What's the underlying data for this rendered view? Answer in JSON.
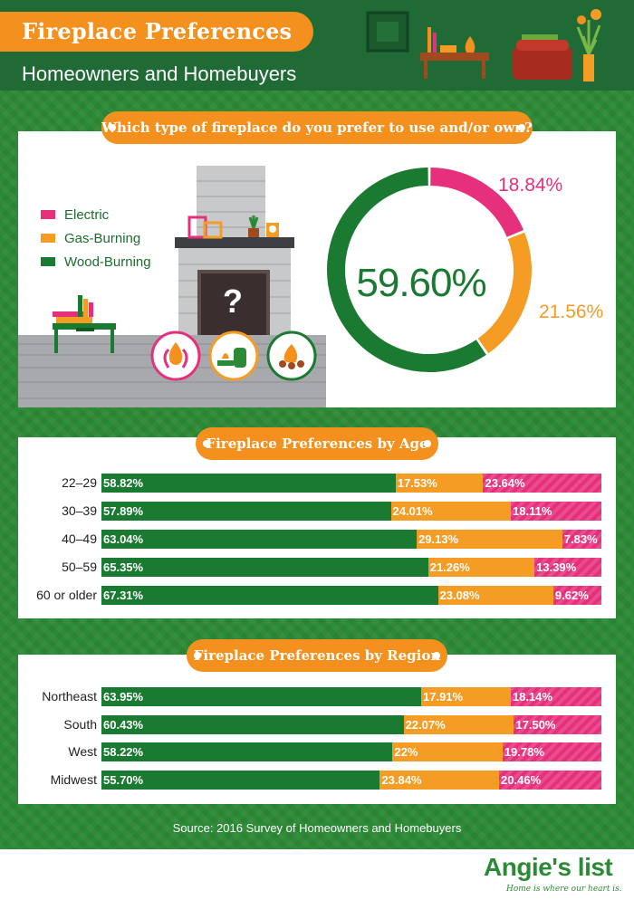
{
  "header": {
    "title": "Fireplace Preferences",
    "subtitle": "Homeowners and Homebuyers"
  },
  "colors": {
    "header_bg": "#1f6a35",
    "background_green": "#2c8a36",
    "accent_orange": "#f4901e",
    "wood": "#1a7a32",
    "gas": "#f59c24",
    "electric": "#e6307c"
  },
  "icons": [
    "electric-fire-icon",
    "gas-tank-flame-icon",
    "campfire-logs-icon",
    "fireplace-illustration",
    "question-mark-icon"
  ],
  "section_q": {
    "title": "Which type of fireplace do you prefer to use and/or own?",
    "question_mark": "?"
  },
  "section_age": {
    "title": "Fireplace Preferences by Age"
  },
  "section_region": {
    "title": "Fireplace Preferences by Region"
  },
  "source": "Source: 2016 Survey of Homeowners and Homebuyers",
  "brand": {
    "name": "Angie's list",
    "tagline": "Home is where our heart is."
  },
  "chart_data": [
    {
      "type": "pie",
      "title": "Which type of fireplace do you prefer to use and/or own?",
      "legend": [
        "Electric",
        "Gas-Burning",
        "Wood-Burning"
      ],
      "legend_position": "left",
      "categories": [
        "Electric",
        "Gas-Burning",
        "Wood-Burning"
      ],
      "values": [
        18.84,
        21.56,
        59.6
      ],
      "labels": [
        "18.84%",
        "21.56%",
        "59.60%"
      ]
    },
    {
      "type": "bar",
      "stacked": true,
      "orientation": "horizontal",
      "title": "Fireplace Preferences by Age",
      "categories": [
        "22–29",
        "30–39",
        "40–49",
        "50–59",
        "60 or older"
      ],
      "series": [
        {
          "name": "Wood-Burning",
          "values": [
            58.82,
            57.89,
            63.04,
            65.35,
            67.31
          ],
          "labels": [
            "58.82%",
            "57.89%",
            "63.04%",
            "65.35%",
            "67.31%"
          ]
        },
        {
          "name": "Gas-Burning",
          "values": [
            17.53,
            24.01,
            29.13,
            21.26,
            23.08
          ],
          "labels": [
            "17.53%",
            "24.01%",
            "29.13%",
            "21.26%",
            "23.08%"
          ]
        },
        {
          "name": "Electric",
          "values": [
            23.64,
            18.11,
            7.83,
            13.39,
            9.62
          ],
          "labels": [
            "23.64%",
            "18.11%",
            "7.83%",
            "13.39%",
            "9.62%"
          ]
        }
      ]
    },
    {
      "type": "bar",
      "stacked": true,
      "orientation": "horizontal",
      "title": "Fireplace Preferences by Region",
      "categories": [
        "Northeast",
        "South",
        "West",
        "Midwest"
      ],
      "series": [
        {
          "name": "Wood-Burning",
          "values": [
            63.95,
            60.43,
            58.22,
            55.7
          ],
          "labels": [
            "63.95%",
            "60.43%",
            "58.22%",
            "55.70%"
          ]
        },
        {
          "name": "Gas-Burning",
          "values": [
            17.91,
            22.07,
            22,
            23.84
          ],
          "labels": [
            "17.91%",
            "22.07%",
            "22%",
            "23.84%"
          ]
        },
        {
          "name": "Electric",
          "values": [
            18.14,
            17.5,
            19.78,
            20.46
          ],
          "labels": [
            "18.14%",
            "17.50%",
            "19.78%",
            "20.46%"
          ]
        }
      ]
    }
  ]
}
